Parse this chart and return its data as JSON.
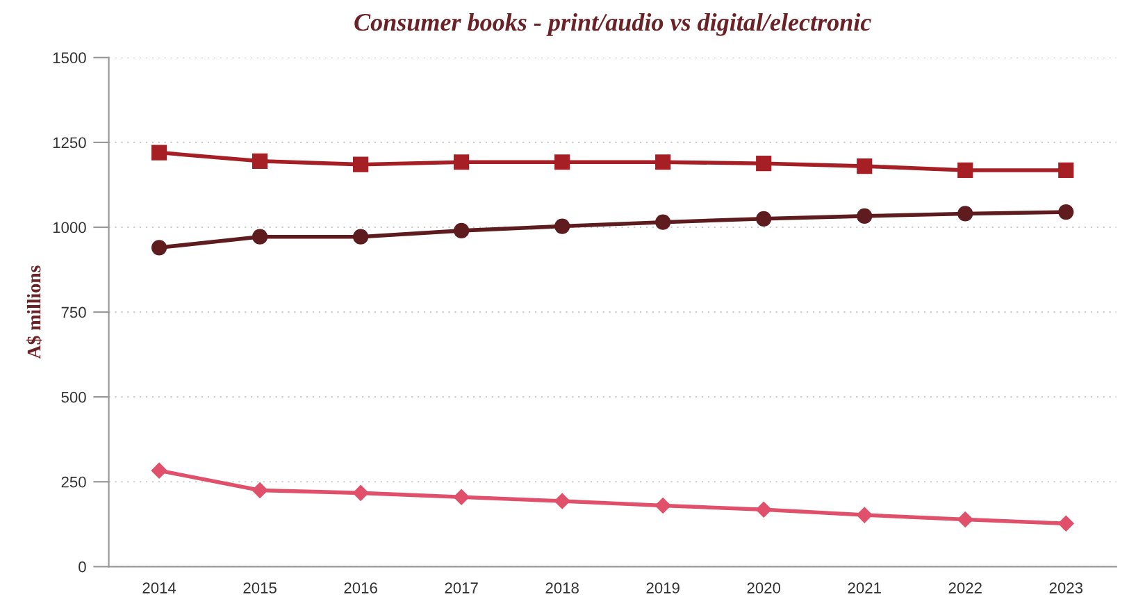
{
  "chart_data": {
    "type": "line",
    "title": "Consumer books - print/audio vs digital/electronic",
    "ylabel": "A$ millions",
    "categories": [
      "2014",
      "2015",
      "2016",
      "2017",
      "2018",
      "2019",
      "2020",
      "2021",
      "2022",
      "2023"
    ],
    "series": [
      {
        "color": "#a51f24",
        "marker": "square",
        "values": [
          1220,
          1195,
          1185,
          1192,
          1192,
          1192,
          1188,
          1180,
          1168,
          1168
        ]
      },
      {
        "color": "#5e1c1f",
        "marker": "circle",
        "values": [
          940,
          972,
          972,
          990,
          1003,
          1015,
          1025,
          1033,
          1040,
          1045
        ]
      },
      {
        "color": "#e0506a",
        "marker": "diamond",
        "values": [
          283,
          225,
          217,
          205,
          193,
          180,
          168,
          152,
          139,
          127
        ]
      }
    ],
    "ylim": [
      0,
      1500
    ],
    "yticks": [
      0,
      250,
      500,
      750,
      1000,
      1250,
      1500
    ],
    "grid": "y",
    "legend": false,
    "line_style": "solid"
  }
}
